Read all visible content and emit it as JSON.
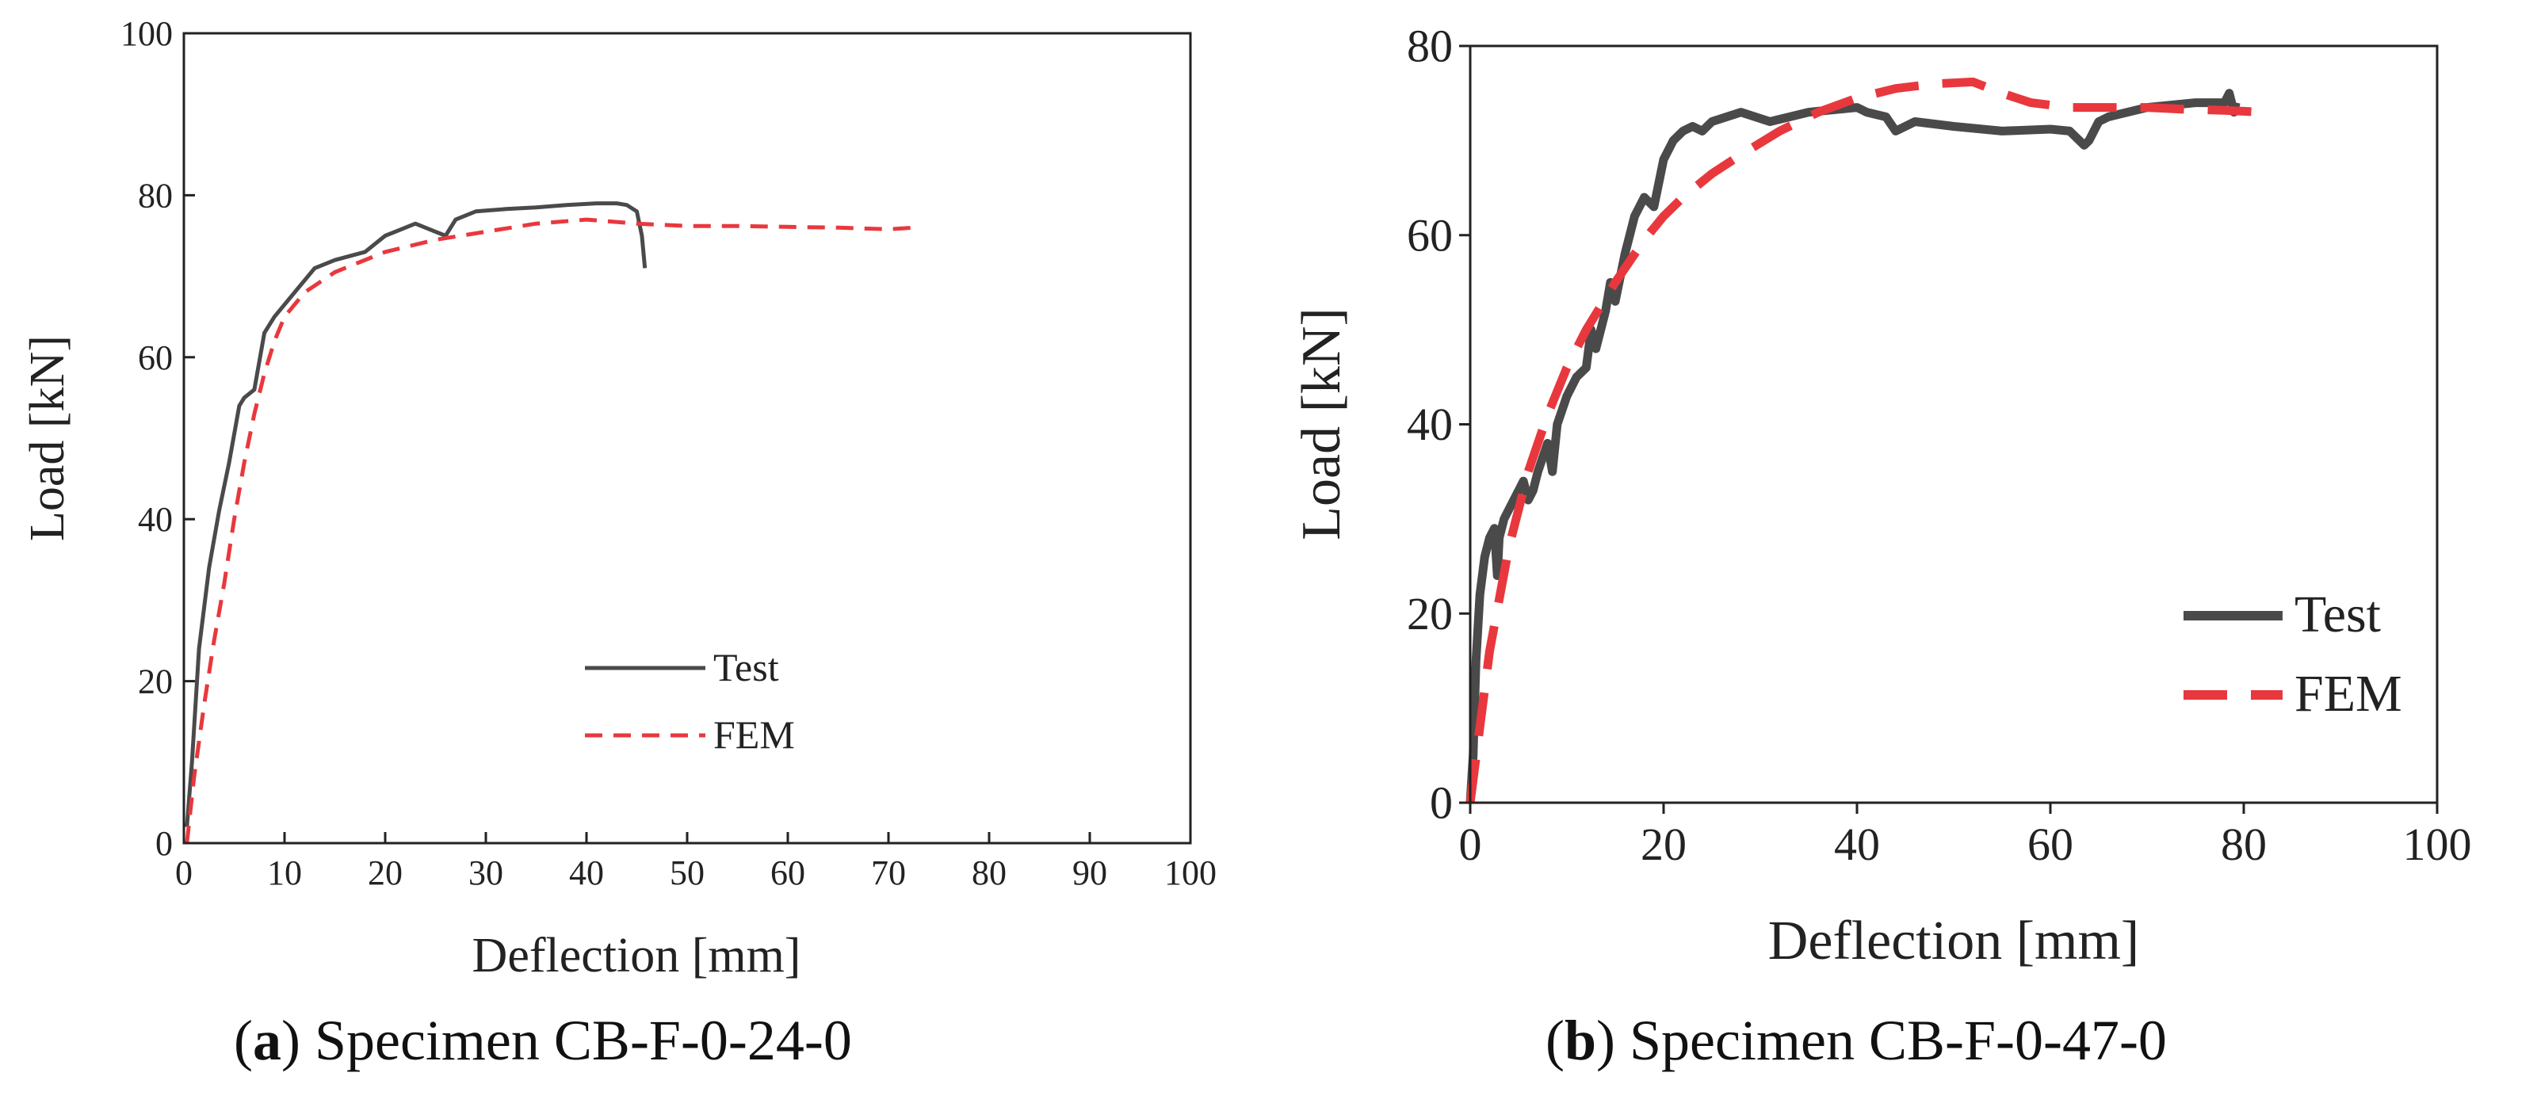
{
  "colors": {
    "test": "#4a4a4a",
    "fem": "#e8383d",
    "axis": "#222222"
  },
  "chart_data": [
    {
      "type": "line",
      "panel": "a",
      "caption": {
        "letter": "a",
        "open": "(",
        "close": ")",
        "text": " Specimen CB-F-0-24-0"
      },
      "xlabel": "Deflection [mm]",
      "ylabel": "Load [kN]",
      "xlim": [
        0,
        100
      ],
      "ylim": [
        0,
        100
      ],
      "xticks": [
        0,
        10,
        20,
        30,
        40,
        50,
        60,
        70,
        80,
        90,
        100
      ],
      "yticks": [
        0,
        20,
        40,
        60,
        80,
        100
      ],
      "grid": false,
      "legend": {
        "position": "lower-center",
        "entries": [
          "Test",
          "FEM"
        ]
      },
      "series": [
        {
          "name": "Test",
          "style": "solid",
          "x": [
            0.3,
            0.8,
            1.5,
            2.5,
            3.5,
            4.5,
            5.5,
            6.0,
            7.0,
            8.0,
            9.0,
            11.0,
            13.0,
            15.0,
            18.0,
            20.0,
            23.0,
            25.0,
            26.0,
            27.0,
            29.0,
            32.0,
            35.0,
            38.0,
            41.0,
            43.0,
            44.0,
            45.0,
            45.5,
            45.8
          ],
          "y": [
            2,
            10,
            24,
            34,
            41,
            47,
            54,
            55,
            56,
            63,
            65,
            68,
            71,
            72,
            73,
            75,
            76.5,
            75.5,
            75,
            77,
            78,
            78.3,
            78.5,
            78.8,
            79,
            79,
            78.8,
            78,
            75,
            71
          ]
        },
        {
          "name": "FEM",
          "style": "dashed",
          "x": [
            0.3,
            1.0,
            2.0,
            3.0,
            4.0,
            5.0,
            6.0,
            7.0,
            8.0,
            9.0,
            10.0,
            12.0,
            15.0,
            20.0,
            25.0,
            30.0,
            35.0,
            40.0,
            45.0,
            50.0,
            55.0,
            60.0,
            65.0,
            70.0,
            72.5
          ],
          "y": [
            0,
            8,
            17,
            25,
            32,
            40,
            47,
            53,
            58,
            62,
            65,
            68,
            70.5,
            73,
            74.5,
            75.5,
            76.5,
            77,
            76.5,
            76.2,
            76.2,
            76.1,
            76,
            75.8,
            76
          ]
        }
      ]
    },
    {
      "type": "line",
      "panel": "b",
      "caption": {
        "letter": "b",
        "open": "(",
        "close": ")",
        "text": " Specimen CB-F-0-47-0"
      },
      "xlabel": "Deflection [mm]",
      "ylabel": "Load [kN]",
      "xlim": [
        0,
        100
      ],
      "ylim": [
        0,
        80
      ],
      "xticks": [
        0,
        20,
        40,
        60,
        80,
        100
      ],
      "yticks": [
        0,
        20,
        40,
        60,
        80
      ],
      "grid": false,
      "legend": {
        "position": "lower-right",
        "entries": [
          "Test",
          "FEM"
        ]
      },
      "series": [
        {
          "name": "Test",
          "style": "solid",
          "x": [
            0,
            0.3,
            0.6,
            1.0,
            1.5,
            2.0,
            2.5,
            2.8,
            3.0,
            3.5,
            4.0,
            5.0,
            5.5,
            6.0,
            6.5,
            7.0,
            8.0,
            8.5,
            9.0,
            10.0,
            11.0,
            12.0,
            12.5,
            13.0,
            14.0,
            14.5,
            15.0,
            16.0,
            17.0,
            18.0,
            19.0,
            20.0,
            21.0,
            22.0,
            23.0,
            24.0,
            25.0,
            28.0,
            31.0,
            35.0,
            40.0,
            41.0,
            43.0,
            44.0,
            46.0,
            50.0,
            55.0,
            60.0,
            62.0,
            63.5,
            64.0,
            65.0,
            66.0,
            70.0,
            75.0,
            78.0,
            78.5,
            79.0,
            79.2
          ],
          "y": [
            0,
            5,
            15,
            22,
            26,
            28,
            29,
            24,
            28,
            30,
            31,
            33,
            34,
            32,
            33,
            35,
            38,
            35,
            40,
            43,
            45,
            46,
            50,
            48,
            52,
            55,
            53,
            58,
            62,
            64,
            63,
            68,
            70,
            71,
            71.5,
            71,
            72,
            73,
            72,
            73,
            73.5,
            73,
            72.5,
            71,
            72,
            71.5,
            71,
            71.2,
            71,
            69.5,
            70,
            72,
            72.5,
            73.5,
            74,
            74,
            75,
            73,
            74
          ]
        },
        {
          "name": "FEM",
          "style": "dashed",
          "x": [
            0,
            2,
            4,
            6,
            8,
            10,
            12,
            15,
            18,
            20,
            22,
            25,
            28,
            32,
            36,
            40,
            44,
            48,
            52,
            55,
            58,
            62,
            66,
            70,
            74,
            78,
            82
          ],
          "y": [
            0,
            16,
            27,
            35,
            41,
            46,
            50,
            55,
            59.5,
            62,
            64,
            66.5,
            68.5,
            71,
            73,
            74.5,
            75.5,
            76,
            76.2,
            75,
            74,
            73.5,
            73.5,
            73.5,
            73.3,
            73.2,
            73
          ]
        }
      ]
    }
  ]
}
